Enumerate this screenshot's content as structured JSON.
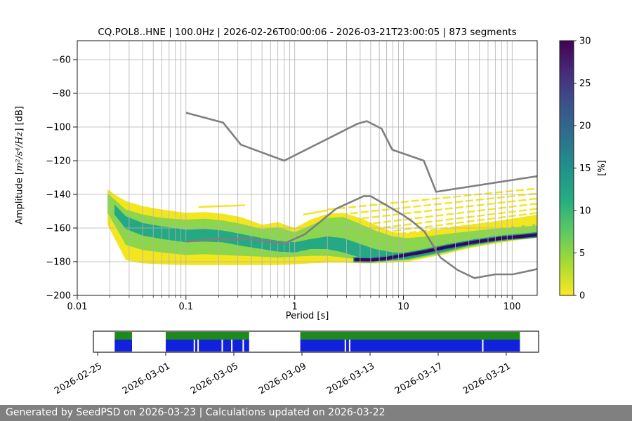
{
  "title": "CQ.POL8..HNE | 100.0Hz | 2026-02-26T00:00:06 - 2026-03-21T23:00:05 | 873 segments",
  "footer": {
    "text": "Generated by SeedPSD on 2026-03-23 | Calculations updated on 2026-03-22",
    "bg": "#808080",
    "fg": "#ffffff"
  },
  "chart_data": {
    "type": "heatmap",
    "title": "CQ.POL8..HNE | 100.0Hz | 2026-02-26T00:00:06 - 2026-03-21T23:00:05 | 873 segments",
    "xlabel": "Period [s]",
    "ylabel": {
      "prefix": "Amplitude [",
      "math": "m²/s⁴/Hz",
      "suffix": "] [dB]"
    },
    "x_scale": "log",
    "xlim": [
      0.01,
      170
    ],
    "ylim": [
      -200,
      -48.75
    ],
    "x_ticks": {
      "values": [
        0.01,
        0.1,
        1,
        10,
        100
      ],
      "labels": [
        "0.01",
        "0.1",
        "1",
        "10",
        "100"
      ]
    },
    "y_ticks": {
      "values": [
        -60,
        -80,
        -100,
        -120,
        -140,
        -160,
        -180,
        -200
      ],
      "labels": [
        "−60",
        "−80",
        "−100",
        "−120",
        "−140",
        "−160",
        "−180",
        "−200"
      ]
    },
    "grid": {
      "show": true,
      "color": "#b2b2b2"
    },
    "frame_color": "#1a1a1a",
    "colorbar": {
      "label": "[%]",
      "min": 0,
      "max": 30,
      "ticks": {
        "values": [
          0,
          5,
          10,
          15,
          20,
          25,
          30
        ],
        "labels": [
          "0",
          "5",
          "10",
          "15",
          "20",
          "25",
          "30"
        ]
      },
      "colormap": "viridis_r",
      "stops": [
        {
          "o": 0.0,
          "c": "#440154"
        },
        {
          "o": 0.13,
          "c": "#472d7b"
        },
        {
          "o": 0.25,
          "c": "#3b528b"
        },
        {
          "o": 0.38,
          "c": "#2c728e"
        },
        {
          "o": 0.5,
          "c": "#21918c"
        },
        {
          "o": 0.63,
          "c": "#27ad81"
        },
        {
          "o": 0.75,
          "c": "#5ec962"
        },
        {
          "o": 0.88,
          "c": "#aadc32"
        },
        {
          "o": 1.0,
          "c": "#fde725"
        }
      ]
    },
    "noise_models": {
      "color": "#7f7f7f",
      "high": [
        [
          0.1,
          -91.5
        ],
        [
          0.22,
          -97.4
        ],
        [
          0.32,
          -110.5
        ],
        [
          0.8,
          -120.0
        ],
        [
          3.8,
          -98.0
        ],
        [
          4.6,
          -96.5
        ],
        [
          6.3,
          -101.0
        ],
        [
          7.9,
          -113.5
        ],
        [
          15.4,
          -120.0
        ],
        [
          20.0,
          -138.5
        ],
        [
          354.8,
          -126.0
        ]
      ],
      "low": [
        [
          0.1,
          -168.0
        ],
        [
          0.17,
          -166.7
        ],
        [
          0.4,
          -166.7
        ],
        [
          0.8,
          -169.2
        ],
        [
          1.24,
          -163.7
        ],
        [
          2.4,
          -148.6
        ],
        [
          4.3,
          -141.1
        ],
        [
          5.0,
          -141.1
        ],
        [
          6.0,
          -144.0
        ],
        [
          10.0,
          -152.4
        ],
        [
          12.0,
          -156.0
        ],
        [
          15.6,
          -162.1
        ],
        [
          21.9,
          -177.5
        ],
        [
          31.6,
          -185.0
        ],
        [
          45.0,
          -189.7
        ],
        [
          70.0,
          -187.5
        ],
        [
          101.0,
          -187.5
        ],
        [
          154.0,
          -185.0
        ],
        [
          328.0,
          -179.6
        ]
      ]
    },
    "ppsd": {
      "bands": [
        {
          "name": "low-density",
          "percent": 2,
          "color": "#f3e51e",
          "p": [
            0.019,
            0.022,
            0.028,
            0.04,
            0.06,
            0.1,
            0.15,
            0.22,
            0.32,
            0.5,
            0.7,
            1.0,
            1.4,
            2.0,
            2.8,
            4.0,
            5.5,
            8.0,
            11,
            16,
            25,
            40,
            70,
            110,
            170
          ],
          "top": [
            -137,
            -140,
            -144,
            -147,
            -149,
            -151,
            -150.5,
            -151.5,
            -153.5,
            -158,
            -156.5,
            -160,
            -155,
            -151.5,
            -151,
            -154,
            -158,
            -162.5,
            -163,
            -162,
            -160,
            -158,
            -156,
            -154,
            -152
          ],
          "bottom": [
            -158,
            -166,
            -179,
            -181,
            -181.5,
            -182,
            -182,
            -182,
            -182,
            -182,
            -182,
            -181.5,
            -181,
            -180.5,
            -180.5,
            -181,
            -181,
            -180.5,
            -180,
            -177.8,
            -175.3,
            -172,
            -169.3,
            -167.3,
            -165.8
          ]
        },
        {
          "name": "mid-density",
          "percent": 7,
          "color": "#8bd64c",
          "p": [
            0.019,
            0.022,
            0.028,
            0.04,
            0.06,
            0.1,
            0.15,
            0.22,
            0.32,
            0.5,
            0.7,
            1.0,
            1.4,
            2.0,
            2.8,
            4.0,
            5.5,
            8.0,
            11,
            16,
            25,
            40,
            70,
            110,
            170
          ],
          "top": [
            -139.5,
            -143,
            -149,
            -152,
            -154,
            -155,
            -154.5,
            -155.5,
            -157.5,
            -160.5,
            -159.5,
            -162.5,
            -158.5,
            -154,
            -153.5,
            -157.5,
            -161.5,
            -165,
            -166,
            -165,
            -163.5,
            -162,
            -160.3,
            -158.8,
            -157.5
          ],
          "bottom": [
            -151,
            -158,
            -170,
            -173,
            -174.5,
            -176,
            -175.5,
            -176,
            -176.5,
            -177,
            -177.5,
            -177,
            -176.5,
            -176.5,
            -177.5,
            -178.8,
            -179.8,
            -179.5,
            -179,
            -177,
            -174.5,
            -171.3,
            -168.5,
            -166.5,
            -165
          ]
        },
        {
          "name": "high-density",
          "percent": 13,
          "color": "#25a884",
          "p": [
            0.022,
            0.028,
            0.04,
            0.06,
            0.1,
            0.15,
            0.22,
            0.32,
            0.5,
            0.7,
            1.0,
            1.4,
            2.0,
            2.8,
            4.0,
            5.5,
            8.0,
            11,
            16,
            25,
            40,
            70,
            110,
            170
          ],
          "top": [
            -146,
            -153,
            -157,
            -159,
            -161,
            -160.5,
            -161.5,
            -163.5,
            -166,
            -167.5,
            -168.5,
            -166.5,
            -165,
            -166,
            -169.5,
            -172.5,
            -174.5,
            -174.8,
            -172.8,
            -170.3,
            -167.8,
            -165.5,
            -163.8,
            -162.5
          ],
          "bottom": [
            -152,
            -160.5,
            -164.5,
            -166.5,
            -168.5,
            -168,
            -168.5,
            -170.5,
            -172.5,
            -174,
            -174.5,
            -172.5,
            -172.5,
            -174.5,
            -177.5,
            -179,
            -179.2,
            -178.5,
            -176.3,
            -173.8,
            -170.5,
            -167.8,
            -165.3,
            -164.2
          ]
        },
        {
          "name": "peak-density",
          "percent": 29,
          "color": "#35085e",
          "stroke": "#21918c",
          "p": [
            3.5,
            5,
            7,
            10,
            15,
            25,
            45,
            80,
            130,
            170
          ],
          "top": [
            -177.5,
            -177.7,
            -176.7,
            -175,
            -173,
            -170,
            -167,
            -164.7,
            -163.5,
            -162.7
          ],
          "bottom": [
            -180.1,
            -180.3,
            -179.3,
            -177.6,
            -175.6,
            -172.6,
            -169.6,
            -167.3,
            -166.1,
            -165.3
          ]
        }
      ],
      "streaks": [
        {
          "from": [
            2.0,
            -149
          ],
          "to": [
            170,
            -136.5
          ],
          "dash": true
        },
        {
          "from": [
            2.6,
            -152
          ],
          "to": [
            170,
            -139.5
          ],
          "dash": true
        },
        {
          "from": [
            3.3,
            -155
          ],
          "to": [
            170,
            -142.5
          ],
          "dash": true
        },
        {
          "from": [
            4.2,
            -158
          ],
          "to": [
            170,
            -145.5
          ],
          "dash": true
        },
        {
          "from": [
            5.2,
            -160.5
          ],
          "to": [
            170,
            -148.5
          ],
          "dash": true
        },
        {
          "from": [
            6.5,
            -162.5
          ],
          "to": [
            170,
            -151
          ],
          "dash": true
        },
        {
          "from": [
            9.0,
            -163.5
          ],
          "to": [
            170,
            -153.5
          ],
          "dash": true
        },
        {
          "from": [
            14,
            -164
          ],
          "to": [
            170,
            -156
          ],
          "dash": true
        },
        {
          "from": [
            22,
            -162.5
          ],
          "to": [
            170,
            -158
          ],
          "dash": true
        },
        {
          "from": [
            0.13,
            -147.5
          ],
          "to": [
            0.35,
            -146.5
          ],
          "dash": false
        },
        {
          "from": [
            1.2,
            -152
          ],
          "to": [
            2.0,
            -149.5
          ],
          "dash": false
        }
      ],
      "streak_color": "#f3e51e"
    }
  },
  "timeline": {
    "day_min": -0.25,
    "day_max": 25.9,
    "row_green_color": "#1e8a1e",
    "row_blue_color": "#1222dc",
    "segments": [
      {
        "start": 1.0,
        "end": 2.02
      },
      {
        "start": 4.0,
        "end": 8.9
      },
      {
        "start": 11.9,
        "end": 24.8
      }
    ],
    "blue_gaps": [
      5.68,
      5.9,
      7.32,
      7.88,
      8.55,
      14.55,
      14.8,
      22.62
    ],
    "ticks": {
      "days": [
        0,
        4,
        8,
        12,
        16,
        20,
        24
      ],
      "labels": [
        "2026-02-25",
        "2026-03-01",
        "2026-03-05",
        "2026-03-09",
        "2026-03-13",
        "2026-03-17",
        "2026-03-21"
      ]
    }
  }
}
